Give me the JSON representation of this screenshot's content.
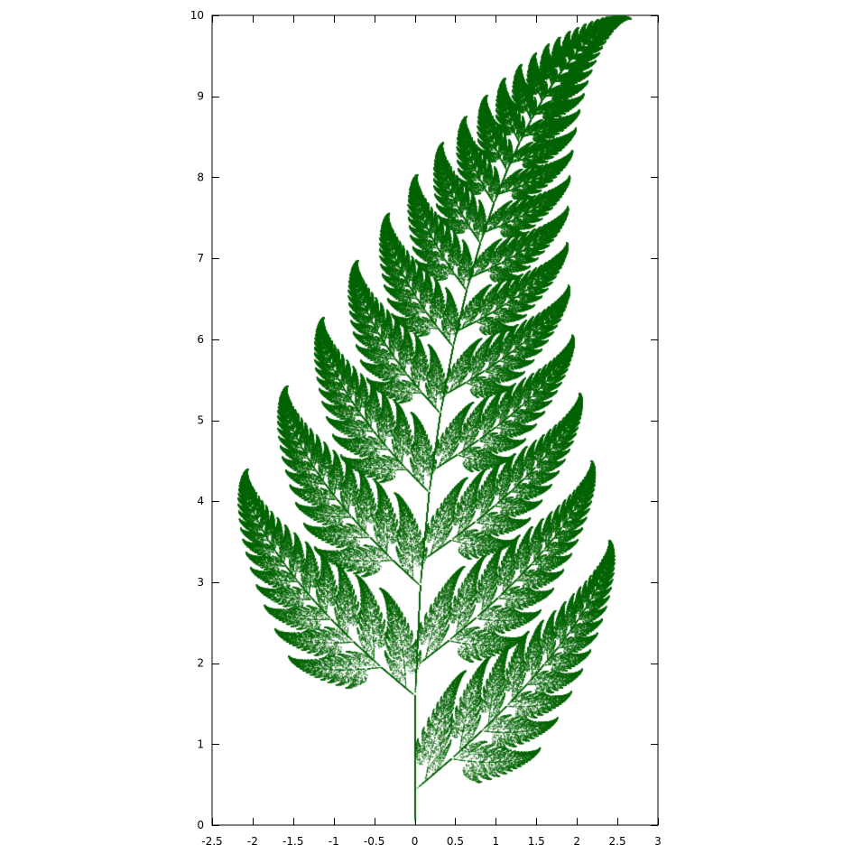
{
  "chart_data": {
    "type": "scatter",
    "title": "",
    "xlabel": "",
    "ylabel": "",
    "xlim": [
      -2.5,
      3
    ],
    "ylim": [
      0,
      10
    ],
    "x_ticks": [
      -2.5,
      -2,
      -1.5,
      -1,
      -0.5,
      0,
      0.5,
      1,
      1.5,
      2,
      2.5,
      3
    ],
    "x_tick_labels": [
      "-2.5",
      "-2",
      "-1.5",
      "-1",
      "-0.5",
      "0",
      "0.5",
      "1",
      "1.5",
      "2",
      "2.5",
      "3"
    ],
    "y_ticks": [
      0,
      1,
      2,
      3,
      4,
      5,
      6,
      7,
      8,
      9,
      10
    ],
    "y_tick_labels": [
      "0",
      "1",
      "2",
      "3",
      "4",
      "5",
      "6",
      "7",
      "8",
      "9",
      "10"
    ],
    "grid": false,
    "legend": "none",
    "point_color": "#006400",
    "series": [
      {
        "generator": "barnsley-fern-ifs",
        "transforms": [
          {
            "a": 0,
            "b": 0,
            "c": 0,
            "d": 0.16,
            "e": 0,
            "f": 0,
            "p": 0.01
          },
          {
            "a": 0.85,
            "b": 0.04,
            "c": -0.04,
            "d": 0.85,
            "e": 0,
            "f": 1.6,
            "p": 0.85
          },
          {
            "a": 0.2,
            "b": -0.26,
            "c": 0.23,
            "d": 0.22,
            "e": 0,
            "f": 1.6,
            "p": 0.07
          },
          {
            "a": -0.15,
            "b": 0.28,
            "c": 0.26,
            "d": 0.24,
            "e": 0,
            "f": 0.44,
            "p": 0.07
          }
        ],
        "points": 700000
      }
    ]
  }
}
